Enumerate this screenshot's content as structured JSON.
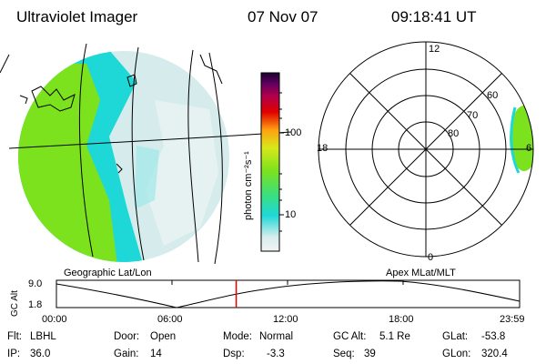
{
  "header": {
    "instrument": "Ultraviolet Imager",
    "date": "07 Nov 07",
    "time": "09:18:41 UT"
  },
  "colorbar": {
    "unit_label": "photon cm⁻²s⁻¹",
    "tick_labels": [
      "100",
      "10"
    ]
  },
  "image_panel": {
    "label": "Geographic Lat/Lon"
  },
  "polar_panel": {
    "label": "Apex MLat/MLT",
    "mlt_labels": {
      "top": "12",
      "left": "18",
      "right": "6",
      "bottom": "0"
    },
    "lat_labels": [
      "60",
      "70",
      "80"
    ]
  },
  "altitude_plot": {
    "ylabel": "GC Alt",
    "ymax_label": "9.0",
    "ymin_label": "1.8",
    "x_labels": [
      "00:00",
      "06:00",
      "12:00",
      "18:00",
      "23:59"
    ],
    "current_time_hours": 9.31
  },
  "info": {
    "flt_label": "Flt:",
    "flt_value": "LBHL",
    "ip_label": "IP:",
    "ip_value": "36.0",
    "door_label": "Door:",
    "door_value": "Open",
    "gain_label": "Gain:",
    "gain_value": "14",
    "mode_label": "Mode:",
    "mode_value": "Normal",
    "dsp_label": "Dsp:",
    "dsp_value": "-3.3",
    "gcalt_label": "GC Alt:",
    "gcalt_value": "5.1 Re",
    "seq_label": "Seq:",
    "seq_value": "39",
    "glat_label": "GLat:",
    "glat_value": "-53.8",
    "glon_label": "GLon:",
    "glon_value": "320.4"
  },
  "colors": {
    "green": "#7CE21E",
    "cyan": "#1ED8D8",
    "pale": "#D6ECEC",
    "red": "#E00000"
  }
}
